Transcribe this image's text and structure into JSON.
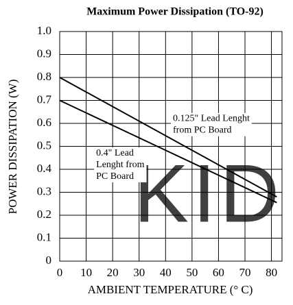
{
  "chart_data": {
    "type": "line",
    "title": "Maximum Power Dissipation (TO-92)",
    "xlabel": "AMBIENT TEMPERATURE (° C)",
    "ylabel": "POWER DISSIPATION (W)",
    "watermark": "KID",
    "x": [
      0,
      82
    ],
    "series": [
      {
        "name": "0.125\" Lead Lenght from PC Board",
        "color": "#000000",
        "values": [
          0.8,
          0.28
        ]
      },
      {
        "name": "0.4\" Lead Lenght from PC Board",
        "color": "#000000",
        "values": [
          0.7,
          0.255
        ]
      }
    ],
    "annotations": [
      {
        "lines": [
          "0.125\" Lead Lenght",
          "from PC Board"
        ],
        "x": 42,
        "y": 0.62
      },
      {
        "lines": [
          "0.4\" Lead",
          "Lenght from",
          "PC Board"
        ],
        "x": 13,
        "y": 0.47
      }
    ],
    "xlim": [
      0,
      84
    ],
    "xticks": [
      0,
      10,
      20,
      30,
      40,
      50,
      60,
      70,
      80
    ],
    "ylim": [
      0,
      1.0
    ],
    "yticks": [
      0,
      0.1,
      0.2,
      0.3,
      0.4,
      0.5,
      0.6,
      0.7,
      0.8,
      0.9,
      {
        "value": 1.0,
        "label": "1.0"
      }
    ],
    "grid": true
  }
}
